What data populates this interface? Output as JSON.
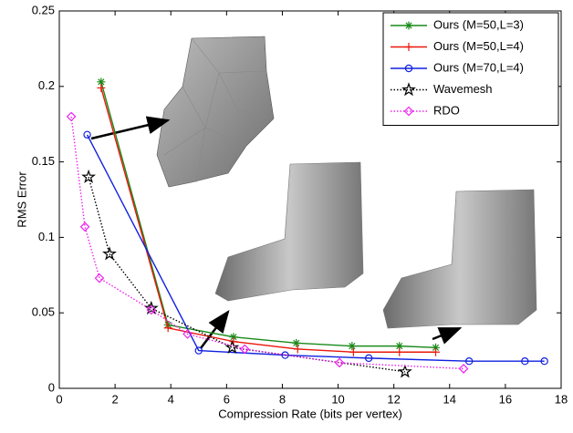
{
  "chart_data": {
    "type": "line",
    "xlabel": "Compression Rate (bits per vertex)",
    "ylabel": "RMS Error",
    "xlim": [
      0,
      18
    ],
    "xticks": [
      0,
      2,
      4,
      6,
      8,
      10,
      12,
      14,
      16,
      18
    ],
    "ylim": [
      0,
      0.25
    ],
    "yticks": [
      0,
      0.05,
      0.1,
      0.15,
      0.2,
      0.25
    ],
    "legend": "upper right",
    "series": [
      {
        "name": "Ours (M=50,L=3)",
        "color": "#1a8a1a",
        "marker": "asterisk",
        "dash": "solid",
        "x": [
          1.5,
          3.9,
          6.25,
          8.5,
          10.5,
          12.2,
          13.5
        ],
        "values": [
          0.203,
          0.042,
          0.034,
          0.03,
          0.028,
          0.028,
          0.027
        ]
      },
      {
        "name": "Ours (M=50,L=4)",
        "color": "#e8180c",
        "marker": "plus",
        "dash": "solid",
        "x": [
          1.5,
          3.9,
          6.25,
          8.55,
          10.55,
          12.2,
          13.5
        ],
        "values": [
          0.199,
          0.04,
          0.031,
          0.026,
          0.024,
          0.024,
          0.024
        ]
      },
      {
        "name": "Ours (M=70,L=4)",
        "color": "#1020e0",
        "marker": "circle",
        "dash": "solid",
        "x": [
          1.0,
          5.0,
          8.1,
          11.1,
          14.7,
          16.7,
          17.4
        ],
        "values": [
          0.168,
          0.025,
          0.022,
          0.02,
          0.018,
          0.018,
          0.018
        ]
      },
      {
        "name": "Wavemesh",
        "color": "#000000",
        "marker": "star",
        "dash": "dotted",
        "x": [
          1.05,
          1.8,
          3.3,
          6.2,
          12.4
        ],
        "values": [
          0.14,
          0.089,
          0.053,
          0.027,
          0.011
        ]
      },
      {
        "name": "RDO",
        "color": "#ee22ee",
        "marker": "diamond",
        "dash": "dotted",
        "x": [
          0.43,
          0.92,
          1.44,
          3.3,
          4.6,
          6.65,
          10.05,
          14.5
        ],
        "values": [
          0.18,
          0.107,
          0.073,
          0.052,
          0.036,
          0.026,
          0.017,
          0.013
        ]
      }
    ]
  }
}
